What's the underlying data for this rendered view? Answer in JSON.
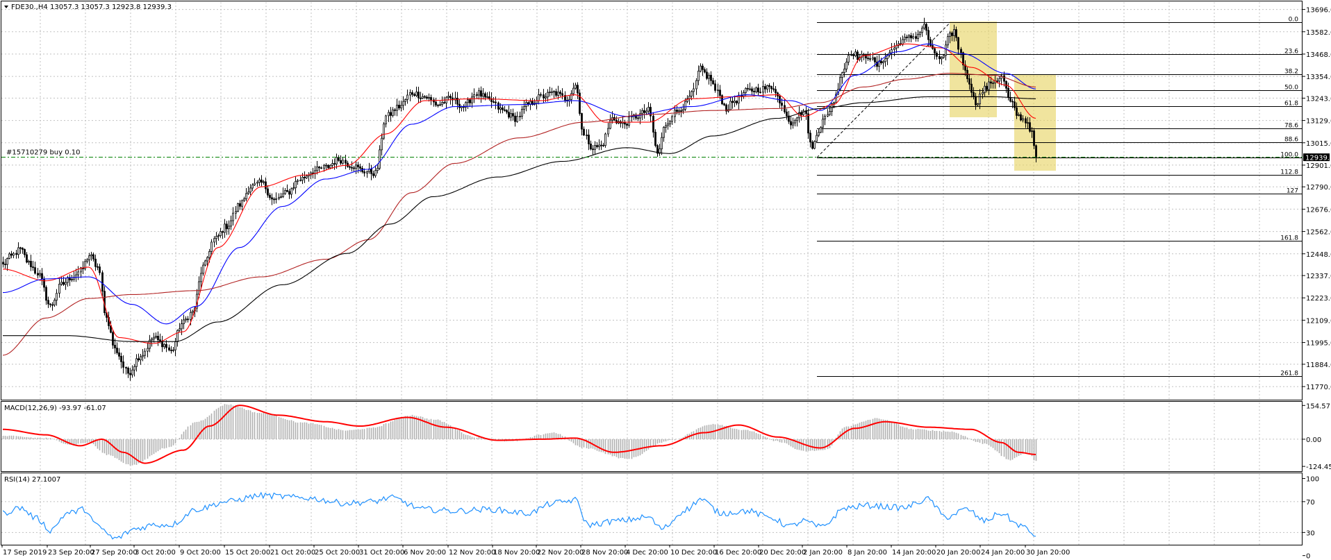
{
  "window": {
    "symbol_title": "FDE30.,H4",
    "ohlc_text": "13057.3 13057.3 12923.8 12939.3",
    "menu_icon": "triangle-down-icon"
  },
  "order_line": {
    "label": "#15710279 buy 0.10",
    "price": 12945.0
  },
  "current_price": {
    "label": "12939.3",
    "value": 12939.3
  },
  "colors": {
    "background": "#ffffff",
    "grid": "#c0c0c0",
    "ema_fast": "#ff0000",
    "ema_mid": "#0000ff",
    "ema_slow_red": "#b22222",
    "sma_200": "#000000",
    "macd_hist": "#b0b0b0",
    "macd_signal": "#ff0000",
    "rsi": "#1e90ff",
    "highlight": "#e8d66a",
    "order_line": "#008000"
  },
  "main_axis": {
    "min": 11710,
    "max": 13730,
    "ticks": [
      "13696.0",
      "13582.0",
      "13468.0",
      "13354.0",
      "13243.0",
      "13129.0",
      "13015.0",
      "12901.0",
      "12790.0",
      "12676.0",
      "12562.0",
      "12448.0",
      "12337.0",
      "12223.0",
      "12109.0",
      "11995.0",
      "11884.0",
      "11770.0"
    ]
  },
  "fibonacci": {
    "high": 13630.0,
    "low": 12940.0,
    "levels": [
      {
        "label": "0.0",
        "ratio": 0.0
      },
      {
        "label": "23.6",
        "ratio": 0.236
      },
      {
        "label": "38.2",
        "ratio": 0.382
      },
      {
        "label": "50.0",
        "ratio": 0.5
      },
      {
        "label": "61.8",
        "ratio": 0.618
      },
      {
        "label": "78.6",
        "ratio": 0.786
      },
      {
        "label": "88.6",
        "ratio": 0.886
      },
      {
        "label": "100.0",
        "ratio": 1.0
      },
      {
        "label": "112.8",
        "ratio": 1.128
      },
      {
        "label": "127",
        "ratio": 1.27
      },
      {
        "label": "161.8",
        "ratio": 1.618
      },
      {
        "label": "261.8",
        "ratio": 2.618
      }
    ]
  },
  "macd": {
    "label": "MACD(12,26,9) -93.97 -61.07",
    "min": -140,
    "max": 165,
    "ticks": [
      "154.57",
      "0.00",
      "-124.45"
    ]
  },
  "rsi": {
    "label": "RSI(14) 27.1007",
    "min": 15,
    "max": 105,
    "ticks": [
      "100",
      "70",
      "30",
      "0"
    ]
  },
  "time_axis": {
    "labels": [
      "17 Sep 2019",
      "23 Sep 20:00",
      "27 Sep 20:00",
      "3 Oct 20:00",
      "9 Oct 20:00",
      "15 Oct 20:00",
      "21 Oct 20:00",
      "25 Oct 20:00",
      "31 Oct 20:00",
      "6 Nov 20:00",
      "12 Nov 20:00",
      "18 Nov 20:00",
      "22 Nov 20:00",
      "28 Nov 20:00",
      "4 Dec 20:00",
      "10 Dec 20:00",
      "16 Dec 20:00",
      "20 Dec 20:00",
      "2 Jan 20:00",
      "8 Jan 20:00",
      "14 Jan 20:00",
      "20 Jan 20:00",
      "24 Jan 20:00",
      "30 Jan 20:00"
    ]
  },
  "chart_data": {
    "type": "candlestick",
    "anchors": [
      [
        0,
        12390
      ],
      [
        3,
        12430
      ],
      [
        8,
        12470
      ],
      [
        12,
        12400
      ],
      [
        16,
        12350
      ],
      [
        22,
        12180
      ],
      [
        27,
        12290
      ],
      [
        32,
        12330
      ],
      [
        36,
        12360
      ],
      [
        40,
        12440
      ],
      [
        44,
        12380
      ],
      [
        48,
        12120
      ],
      [
        52,
        11960
      ],
      [
        58,
        11840
      ],
      [
        64,
        11930
      ],
      [
        70,
        12020
      ],
      [
        74,
        11990
      ],
      [
        78,
        11950
      ],
      [
        83,
        12090
      ],
      [
        88,
        12150
      ],
      [
        93,
        12380
      ],
      [
        98,
        12520
      ],
      [
        104,
        12590
      ],
      [
        110,
        12700
      ],
      [
        115,
        12790
      ],
      [
        120,
        12810
      ],
      [
        126,
        12720
      ],
      [
        132,
        12760
      ],
      [
        138,
        12830
      ],
      [
        144,
        12870
      ],
      [
        150,
        12890
      ],
      [
        156,
        12930
      ],
      [
        162,
        12900
      ],
      [
        168,
        12870
      ],
      [
        173,
        12860
      ],
      [
        178,
        13150
      ],
      [
        184,
        13200
      ],
      [
        190,
        13270
      ],
      [
        196,
        13250
      ],
      [
        202,
        13210
      ],
      [
        208,
        13240
      ],
      [
        214,
        13200
      ],
      [
        220,
        13270
      ],
      [
        226,
        13230
      ],
      [
        232,
        13180
      ],
      [
        238,
        13140
      ],
      [
        244,
        13210
      ],
      [
        250,
        13250
      ],
      [
        256,
        13270
      ],
      [
        262,
        13240
      ],
      [
        266,
        13310
      ],
      [
        270,
        13050
      ],
      [
        274,
        12990
      ],
      [
        278,
        13000
      ],
      [
        283,
        13140
      ],
      [
        288,
        13110
      ],
      [
        294,
        13150
      ],
      [
        300,
        13180
      ],
      [
        304,
        12960
      ],
      [
        308,
        13110
      ],
      [
        312,
        13170
      ],
      [
        316,
        13200
      ],
      [
        320,
        13260
      ],
      [
        324,
        13390
      ],
      [
        328,
        13350
      ],
      [
        332,
        13270
      ],
      [
        336,
        13190
      ],
      [
        340,
        13230
      ],
      [
        346,
        13280
      ],
      [
        352,
        13290
      ],
      [
        358,
        13300
      ],
      [
        362,
        13200
      ],
      [
        366,
        13120
      ],
      [
        369,
        13150
      ],
      [
        372,
        13180
      ],
      [
        376,
        12980
      ],
      [
        378,
        13070
      ],
      [
        382,
        13140
      ],
      [
        386,
        13230
      ],
      [
        390,
        13380
      ],
      [
        394,
        13480
      ],
      [
        398,
        13450
      ],
      [
        402,
        13460
      ],
      [
        406,
        13410
      ],
      [
        410,
        13450
      ],
      [
        414,
        13500
      ],
      [
        418,
        13540
      ],
      [
        424,
        13560
      ],
      [
        428,
        13610
      ],
      [
        432,
        13480
      ],
      [
        436,
        13440
      ],
      [
        440,
        13560
      ],
      [
        442,
        13590
      ],
      [
        444,
        13500
      ],
      [
        448,
        13350
      ],
      [
        452,
        13220
      ],
      [
        456,
        13290
      ],
      [
        460,
        13330
      ],
      [
        464,
        13350
      ],
      [
        468,
        13220
      ],
      [
        472,
        13150
      ],
      [
        476,
        13120
      ],
      [
        478,
        13060
      ],
      [
        480,
        12940
      ]
    ],
    "ma_anchors": {
      "ema_fast": [
        [
          0,
          12370
        ],
        [
          20,
          12310
        ],
        [
          40,
          12380
        ],
        [
          54,
          12020
        ],
        [
          70,
          11990
        ],
        [
          84,
          12050
        ],
        [
          100,
          12480
        ],
        [
          120,
          12790
        ],
        [
          140,
          12850
        ],
        [
          160,
          12900
        ],
        [
          178,
          13060
        ],
        [
          196,
          13230
        ],
        [
          220,
          13240
        ],
        [
          250,
          13230
        ],
        [
          266,
          13260
        ],
        [
          280,
          13120
        ],
        [
          300,
          13120
        ],
        [
          320,
          13240
        ],
        [
          340,
          13250
        ],
        [
          360,
          13260
        ],
        [
          372,
          13150
        ],
        [
          386,
          13210
        ],
        [
          400,
          13460
        ],
        [
          420,
          13520
        ],
        [
          436,
          13500
        ],
        [
          450,
          13400
        ],
        [
          466,
          13310
        ],
        [
          480,
          13140
        ]
      ],
      "ema_mid": [
        [
          0,
          12250
        ],
        [
          20,
          12320
        ],
        [
          40,
          12330
        ],
        [
          60,
          12190
        ],
        [
          76,
          12090
        ],
        [
          90,
          12180
        ],
        [
          110,
          12480
        ],
        [
          130,
          12690
        ],
        [
          150,
          12830
        ],
        [
          170,
          12880
        ],
        [
          190,
          13110
        ],
        [
          210,
          13200
        ],
        [
          240,
          13210
        ],
        [
          266,
          13230
        ],
        [
          290,
          13150
        ],
        [
          320,
          13200
        ],
        [
          346,
          13260
        ],
        [
          366,
          13230
        ],
        [
          380,
          13180
        ],
        [
          396,
          13360
        ],
        [
          416,
          13480
        ],
        [
          430,
          13520
        ],
        [
          446,
          13470
        ],
        [
          466,
          13370
        ],
        [
          480,
          13290
        ]
      ],
      "ema_slow_red": [
        [
          0,
          11930
        ],
        [
          20,
          12120
        ],
        [
          40,
          12220
        ],
        [
          60,
          12240
        ],
        [
          90,
          12260
        ],
        [
          120,
          12330
        ],
        [
          150,
          12420
        ],
        [
          170,
          12520
        ],
        [
          190,
          12760
        ],
        [
          210,
          12910
        ],
        [
          240,
          13040
        ],
        [
          270,
          13120
        ],
        [
          300,
          13160
        ],
        [
          330,
          13180
        ],
        [
          360,
          13190
        ],
        [
          380,
          13220
        ],
        [
          400,
          13300
        ],
        [
          420,
          13340
        ],
        [
          440,
          13370
        ],
        [
          460,
          13360
        ],
        [
          480,
          13300
        ]
      ],
      "sma_200": [
        [
          0,
          12030
        ],
        [
          30,
          12030
        ],
        [
          60,
          12000
        ],
        [
          80,
          12000
        ],
        [
          100,
          12100
        ],
        [
          130,
          12290
        ],
        [
          160,
          12450
        ],
        [
          180,
          12600
        ],
        [
          200,
          12740
        ],
        [
          230,
          12840
        ],
        [
          260,
          12920
        ],
        [
          290,
          12990
        ],
        [
          310,
          12960
        ],
        [
          330,
          13050
        ],
        [
          360,
          13140
        ],
        [
          380,
          13190
        ],
        [
          400,
          13220
        ],
        [
          430,
          13250
        ],
        [
          460,
          13250
        ],
        [
          480,
          13240
        ]
      ]
    },
    "macd_anchors": [
      [
        0,
        15
      ],
      [
        20,
        5
      ],
      [
        32,
        -25
      ],
      [
        40,
        -15
      ],
      [
        48,
        -70
      ],
      [
        60,
        -120
      ],
      [
        76,
        -40
      ],
      [
        90,
        80
      ],
      [
        104,
        160
      ],
      [
        120,
        120
      ],
      [
        140,
        75
      ],
      [
        160,
        40
      ],
      [
        170,
        50
      ],
      [
        190,
        110
      ],
      [
        200,
        90
      ],
      [
        220,
        10
      ],
      [
        236,
        -10
      ],
      [
        256,
        30
      ],
      [
        270,
        -40
      ],
      [
        290,
        -90
      ],
      [
        310,
        -5
      ],
      [
        330,
        70
      ],
      [
        346,
        40
      ],
      [
        360,
        -10
      ],
      [
        372,
        -55
      ],
      [
        382,
        -50
      ],
      [
        392,
        60
      ],
      [
        406,
        95
      ],
      [
        424,
        45
      ],
      [
        440,
        35
      ],
      [
        456,
        -20
      ],
      [
        468,
        -95
      ],
      [
        476,
        -60
      ],
      [
        480,
        -100
      ]
    ],
    "macd_signal_anchors": [
      [
        0,
        45
      ],
      [
        20,
        20
      ],
      [
        36,
        -30
      ],
      [
        46,
        0
      ],
      [
        56,
        -60
      ],
      [
        66,
        -110
      ],
      [
        84,
        -50
      ],
      [
        96,
        60
      ],
      [
        110,
        155
      ],
      [
        128,
        110
      ],
      [
        150,
        80
      ],
      [
        166,
        60
      ],
      [
        188,
        100
      ],
      [
        206,
        55
      ],
      [
        230,
        -5
      ],
      [
        250,
        0
      ],
      [
        266,
        5
      ],
      [
        284,
        -60
      ],
      [
        306,
        -30
      ],
      [
        326,
        30
      ],
      [
        342,
        65
      ],
      [
        360,
        10
      ],
      [
        380,
        -40
      ],
      [
        396,
        50
      ],
      [
        410,
        80
      ],
      [
        430,
        55
      ],
      [
        450,
        45
      ],
      [
        464,
        -15
      ],
      [
        472,
        -60
      ],
      [
        480,
        -70
      ]
    ],
    "rsi_anchors": [
      [
        0,
        55
      ],
      [
        8,
        62
      ],
      [
        16,
        48
      ],
      [
        22,
        33
      ],
      [
        30,
        55
      ],
      [
        38,
        60
      ],
      [
        44,
        38
      ],
      [
        52,
        22
      ],
      [
        62,
        35
      ],
      [
        70,
        40
      ],
      [
        78,
        40
      ],
      [
        90,
        60
      ],
      [
        104,
        70
      ],
      [
        120,
        78
      ],
      [
        140,
        75
      ],
      [
        160,
        68
      ],
      [
        172,
        70
      ],
      [
        180,
        75
      ],
      [
        196,
        60
      ],
      [
        210,
        58
      ],
      [
        226,
        60
      ],
      [
        244,
        55
      ],
      [
        256,
        68
      ],
      [
        266,
        72
      ],
      [
        272,
        40
      ],
      [
        286,
        45
      ],
      [
        300,
        50
      ],
      [
        306,
        35
      ],
      [
        318,
        60
      ],
      [
        324,
        73
      ],
      [
        334,
        55
      ],
      [
        346,
        58
      ],
      [
        356,
        50
      ],
      [
        366,
        38
      ],
      [
        372,
        45
      ],
      [
        380,
        37
      ],
      [
        392,
        62
      ],
      [
        402,
        65
      ],
      [
        418,
        62
      ],
      [
        430,
        73
      ],
      [
        438,
        50
      ],
      [
        448,
        60
      ],
      [
        456,
        45
      ],
      [
        464,
        55
      ],
      [
        472,
        40
      ],
      [
        480,
        27
      ]
    ]
  }
}
